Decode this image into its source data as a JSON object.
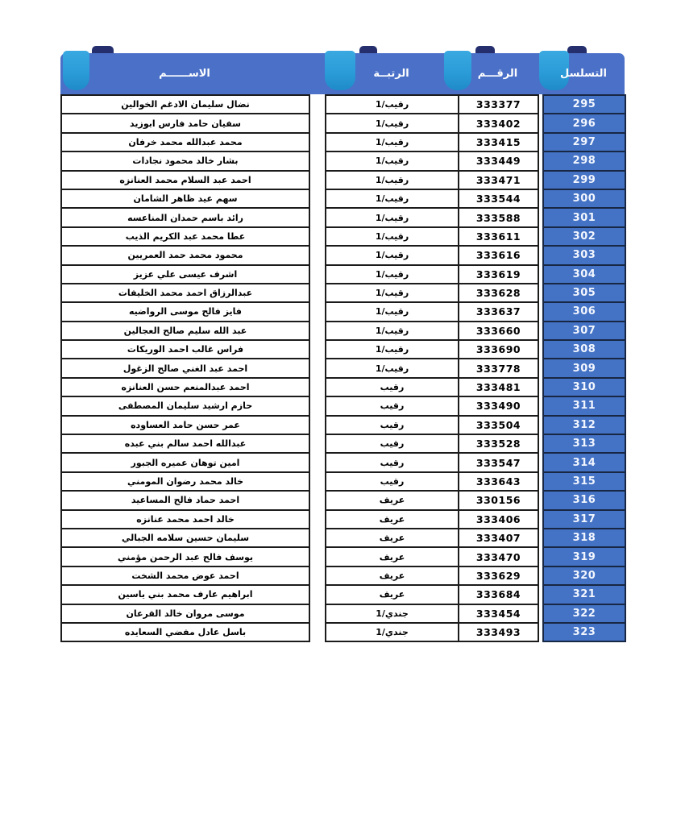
{
  "table": {
    "columns": [
      {
        "key": "name",
        "label": "الاســــــم"
      },
      {
        "key": "rank",
        "label": "الرتبــة"
      },
      {
        "key": "number",
        "label": "الرقـــم"
      },
      {
        "key": "serial",
        "label": "التسلسل"
      }
    ],
    "rows": [
      {
        "serial": "295",
        "number": "333377",
        "rank": "رقيب/1",
        "name": "نضال سليمان الادغم الخوالين"
      },
      {
        "serial": "296",
        "number": "333402",
        "rank": "رقيب/1",
        "name": "سفيان حامد فارس ابوزيد"
      },
      {
        "serial": "297",
        "number": "333415",
        "rank": "رقيب/1",
        "name": "محمد عبدالله محمد خرفان"
      },
      {
        "serial": "298",
        "number": "333449",
        "rank": "رقيب/1",
        "name": "بشار خالد محمود نجادات"
      },
      {
        "serial": "299",
        "number": "333471",
        "rank": "رقيب/1",
        "name": "احمد عبد السلام محمد العنانزه"
      },
      {
        "serial": "300",
        "number": "333544",
        "rank": "رقيب/1",
        "name": "سهم عيد ظاهر الشامان"
      },
      {
        "serial": "301",
        "number": "333588",
        "rank": "رقيب/1",
        "name": "رائد باسم حمدان المناعسه"
      },
      {
        "serial": "302",
        "number": "333611",
        "rank": "رقيب/1",
        "name": "عطا محمد عبد الكريم الذيب"
      },
      {
        "serial": "303",
        "number": "333616",
        "rank": "رقيب/1",
        "name": "محمود محمد حمد العمريين"
      },
      {
        "serial": "304",
        "number": "333619",
        "rank": "رقيب/1",
        "name": "اشرف عيسى علي عزيز"
      },
      {
        "serial": "305",
        "number": "333628",
        "rank": "رقيب/1",
        "name": "عبدالرزاق احمد محمد الخليفات"
      },
      {
        "serial": "306",
        "number": "333637",
        "rank": "رقيب/1",
        "name": "فايز فالح موسى الرواضيه"
      },
      {
        "serial": "307",
        "number": "333660",
        "rank": "رقيب/1",
        "name": "عبد الله سليم صالح العجالين"
      },
      {
        "serial": "308",
        "number": "333690",
        "rank": "رقيب/1",
        "name": "فراس غالب احمد الوريكات"
      },
      {
        "serial": "309",
        "number": "333778",
        "rank": "رقيب/1",
        "name": "احمد عبد الغني صالح الزغول"
      },
      {
        "serial": "310",
        "number": "333481",
        "rank": "رقيب",
        "name": "احمد عبدالمنعم حسن العنانزه"
      },
      {
        "serial": "311",
        "number": "333490",
        "rank": "رقيب",
        "name": "حازم ارشيد سليمان المصطفى"
      },
      {
        "serial": "312",
        "number": "333504",
        "rank": "رقيب",
        "name": "عمر حسن حامد العساوده"
      },
      {
        "serial": "313",
        "number": "333528",
        "rank": "رقيب",
        "name": "عبدالله احمد سالم بني عبده"
      },
      {
        "serial": "314",
        "number": "333547",
        "rank": "رقيب",
        "name": "امين توهان عميره الجبور"
      },
      {
        "serial": "315",
        "number": "333643",
        "rank": "رقيب",
        "name": "خالد محمد رضوان المومني"
      },
      {
        "serial": "316",
        "number": "330156",
        "rank": "عريف",
        "name": "احمد حماد فالح المساعيد"
      },
      {
        "serial": "317",
        "number": "333406",
        "rank": "عريف",
        "name": "خالد احمد محمد عنانزه"
      },
      {
        "serial": "318",
        "number": "333407",
        "rank": "عريف",
        "name": "سليمان حسين سلامه الجبالي"
      },
      {
        "serial": "319",
        "number": "333470",
        "rank": "عريف",
        "name": "يوسف فالح عبد الرحمن مؤمني"
      },
      {
        "serial": "320",
        "number": "333629",
        "rank": "عريف",
        "name": "احمد عوض محمد الشخت"
      },
      {
        "serial": "321",
        "number": "333684",
        "rank": "عريف",
        "name": "ابراهيم عارف محمد بني ياسين"
      },
      {
        "serial": "322",
        "number": "333454",
        "rank": "جندي/1",
        "name": "موسى مروان خالد القرعان"
      },
      {
        "serial": "323",
        "number": "333493",
        "rank": "جندي/1",
        "name": "باسل عادل مفضي السعايده"
      }
    ]
  },
  "colors": {
    "header_band": "#4a70c8",
    "header_tab_dark": "#252f6e",
    "header_ornament_cyan": "#2b9cd8",
    "serial_cell_blue": "#4472c4",
    "cell_border": "#1b1b1b",
    "header_text": "#ffffff",
    "body_text": "#000000"
  }
}
